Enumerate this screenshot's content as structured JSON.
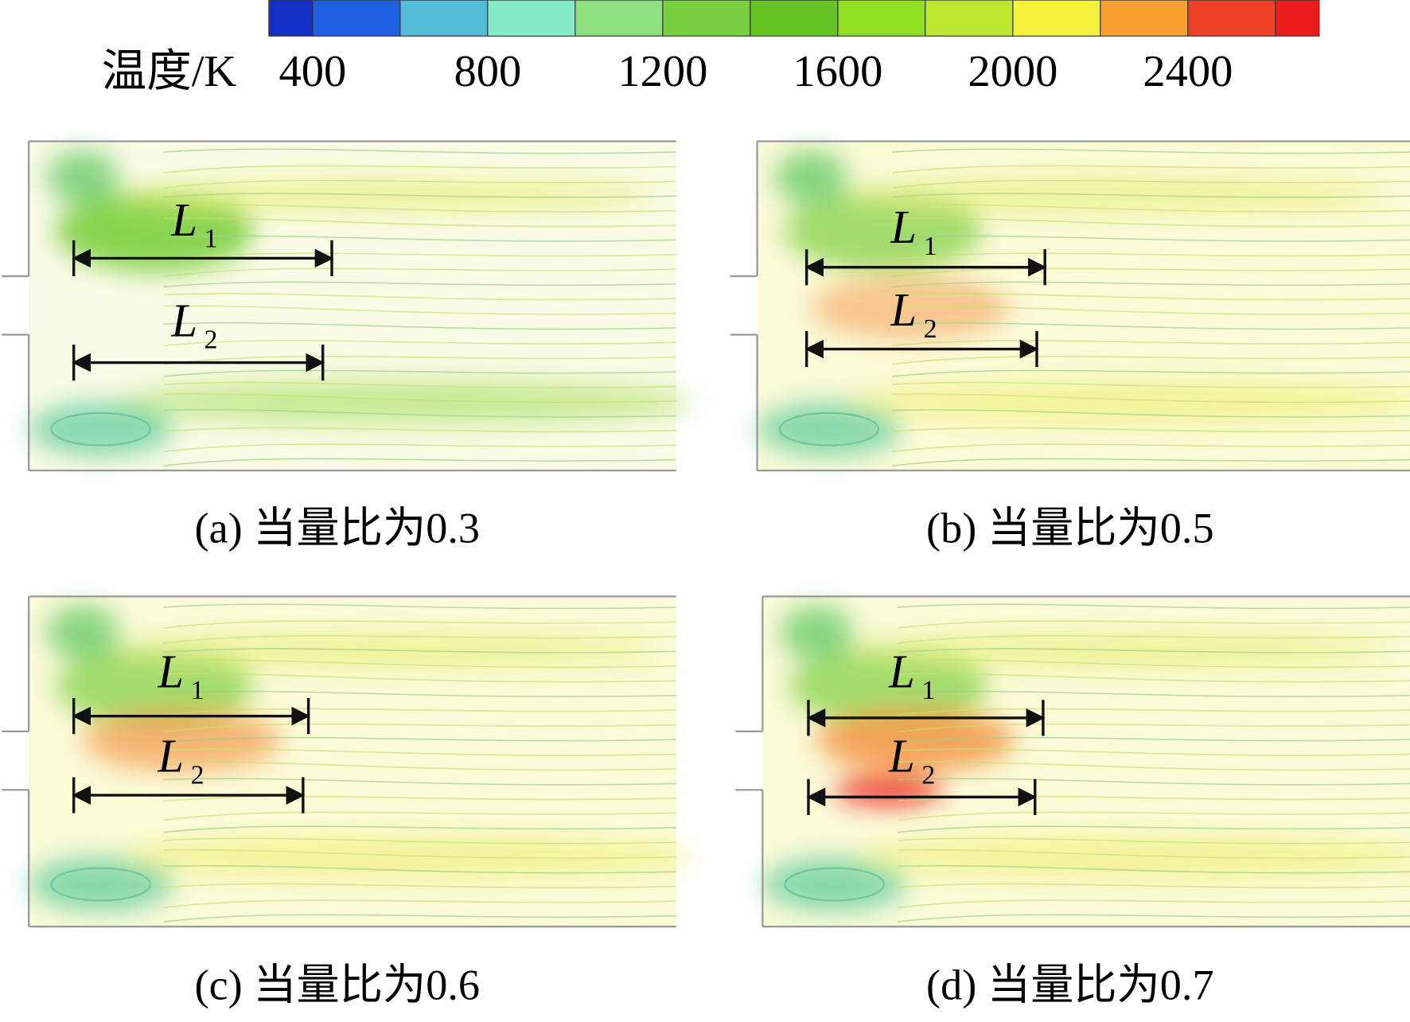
{
  "colorbar": {
    "label": "温度/K",
    "levels": [
      300,
      400,
      600,
      800,
      1000,
      1200,
      1400,
      1600,
      1800,
      2000,
      2200,
      2400,
      2600,
      2700
    ],
    "colors": [
      "#1230c8",
      "#1f5fe0",
      "#55bcd8",
      "#86ecc8",
      "#8ee07e",
      "#78d040",
      "#66c424",
      "#8ee020",
      "#bce830",
      "#f4f23c",
      "#f8a030",
      "#f04028",
      "#ec1c1c"
    ],
    "ticks": [
      400,
      800,
      1200,
      1600,
      2000,
      2400
    ]
  },
  "panels": [
    {
      "caption": "(a) 当量比为0.3",
      "lengths": [
        {
          "letter": "L",
          "sub": "1"
        },
        {
          "letter": "L",
          "sub": "2"
        }
      ]
    },
    {
      "caption": "(b) 当量比为0.5",
      "lengths": [
        {
          "letter": "L",
          "sub": "1"
        },
        {
          "letter": "L",
          "sub": "2"
        }
      ]
    },
    {
      "caption": "(c) 当量比为0.6",
      "lengths": [
        {
          "letter": "L",
          "sub": "1"
        },
        {
          "letter": "L",
          "sub": "2"
        }
      ]
    },
    {
      "caption": "(d) 当量比为0.7",
      "lengths": [
        {
          "letter": "L",
          "sub": "1"
        },
        {
          "letter": "L",
          "sub": "2"
        }
      ]
    }
  ]
}
